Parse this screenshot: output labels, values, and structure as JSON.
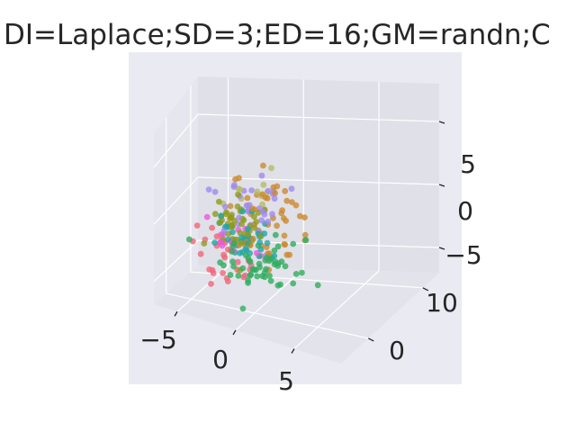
{
  "chart_data": {
    "type": "scatter",
    "projection": "3d",
    "title": "DI=Laplace;SD=3;ED=16;GM=randn;C",
    "xlim": [
      -7,
      9
    ],
    "ylim": [
      -5,
      13
    ],
    "zlim": [
      -7,
      8
    ],
    "x_ticks": [
      "−5",
      "0",
      "5"
    ],
    "y_ticks": [
      "0",
      "10"
    ],
    "z_ticks": [
      "−5",
      "0",
      "5"
    ],
    "grid": true,
    "style": "seaborn-darkgrid",
    "point_alpha": 0.8,
    "clusters": [
      {
        "color": "#f0677a",
        "center": [
          -2.5,
          1.0,
          -3.0
        ],
        "spread": [
          1.3,
          1.2,
          1.3
        ],
        "count": 30
      },
      {
        "color": "#cc8a2e",
        "center": [
          0.5,
          1.5,
          0.5
        ],
        "spread": [
          1.7,
          1.6,
          1.7
        ],
        "count": 50
      },
      {
        "color": "#8e9b1f",
        "center": [
          -1.5,
          0.5,
          0.2
        ],
        "spread": [
          1.1,
          1.1,
          1.2
        ],
        "count": 45
      },
      {
        "color": "#2fad5e",
        "center": [
          1.5,
          -2.0,
          -2.2
        ],
        "spread": [
          1.7,
          1.2,
          1.0
        ],
        "count": 55
      },
      {
        "color": "#22a6a6",
        "center": [
          -0.5,
          0.0,
          -1.0
        ],
        "spread": [
          1.1,
          1.1,
          1.0
        ],
        "count": 35
      },
      {
        "color": "#9f8aef",
        "center": [
          -1.0,
          2.0,
          1.5
        ],
        "spread": [
          1.5,
          1.6,
          1.6
        ],
        "count": 30
      },
      {
        "color": "#e95ad8",
        "center": [
          -2.5,
          0.5,
          -1.5
        ],
        "spread": [
          0.8,
          0.8,
          0.8
        ],
        "count": 12
      },
      {
        "color": "#b5bc62",
        "center": [
          -1.0,
          1.5,
          2.0
        ],
        "spread": [
          1.2,
          1.2,
          1.5
        ],
        "count": 12
      }
    ]
  }
}
